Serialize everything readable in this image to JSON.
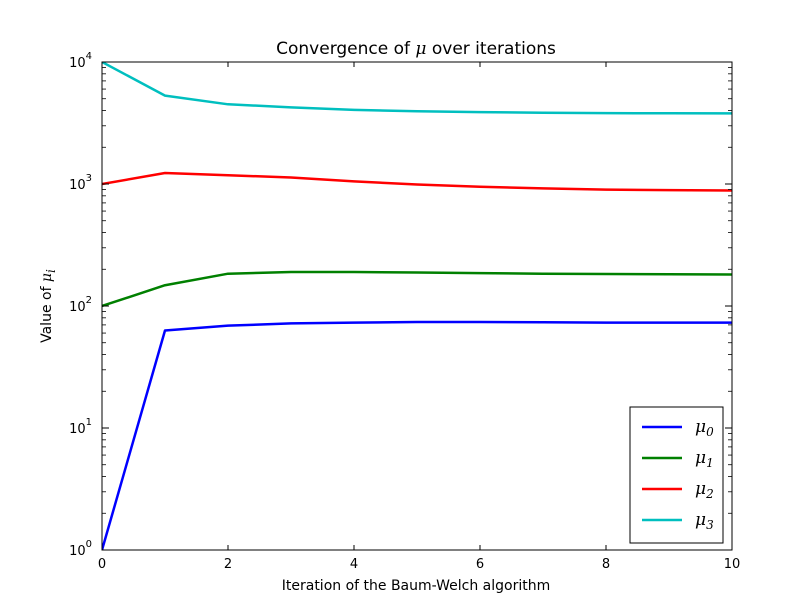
{
  "chart_data": {
    "type": "line",
    "title_prefix": "Convergence of ",
    "title_symbol": "μ",
    "title_suffix": " over iterations",
    "xlabel": "Iteration of the Baum-Welch algorithm",
    "ylabel_prefix": "Value of ",
    "ylabel_symbol": "μ",
    "ylabel_subscript": "i",
    "xlim": [
      0,
      10
    ],
    "ylim": [
      1,
      10000
    ],
    "yscale": "log",
    "x_ticks": [
      "0",
      "2",
      "4",
      "6",
      "8",
      "10"
    ],
    "y_ticks": [
      {
        "base": "10",
        "exp": "0"
      },
      {
        "base": "10",
        "exp": "1"
      },
      {
        "base": "10",
        "exp": "2"
      },
      {
        "base": "10",
        "exp": "3"
      },
      {
        "base": "10",
        "exp": "4"
      }
    ],
    "grid": false,
    "legend_position": "lower-right",
    "x": [
      0,
      1,
      2,
      3,
      4,
      5,
      6,
      7,
      8,
      9,
      10
    ],
    "series": [
      {
        "symbol": "μ",
        "subscript": "0",
        "color": "#0000ff",
        "values": [
          1,
          63,
          69,
          72,
          73,
          74,
          74,
          73.5,
          73,
          73,
          73
        ]
      },
      {
        "symbol": "μ",
        "subscript": "1",
        "color": "#008000",
        "values": [
          100,
          148,
          184,
          190,
          190,
          188,
          186,
          184,
          183,
          182,
          181
        ]
      },
      {
        "symbol": "μ",
        "subscript": "2",
        "color": "#ff0000",
        "values": [
          1000,
          1230,
          1180,
          1130,
          1050,
          990,
          950,
          920,
          900,
          890,
          885
        ]
      },
      {
        "symbol": "μ",
        "subscript": "3",
        "color": "#00bfbf",
        "values": [
          10000,
          5300,
          4500,
          4250,
          4050,
          3950,
          3880,
          3840,
          3810,
          3800,
          3790
        ]
      }
    ]
  }
}
